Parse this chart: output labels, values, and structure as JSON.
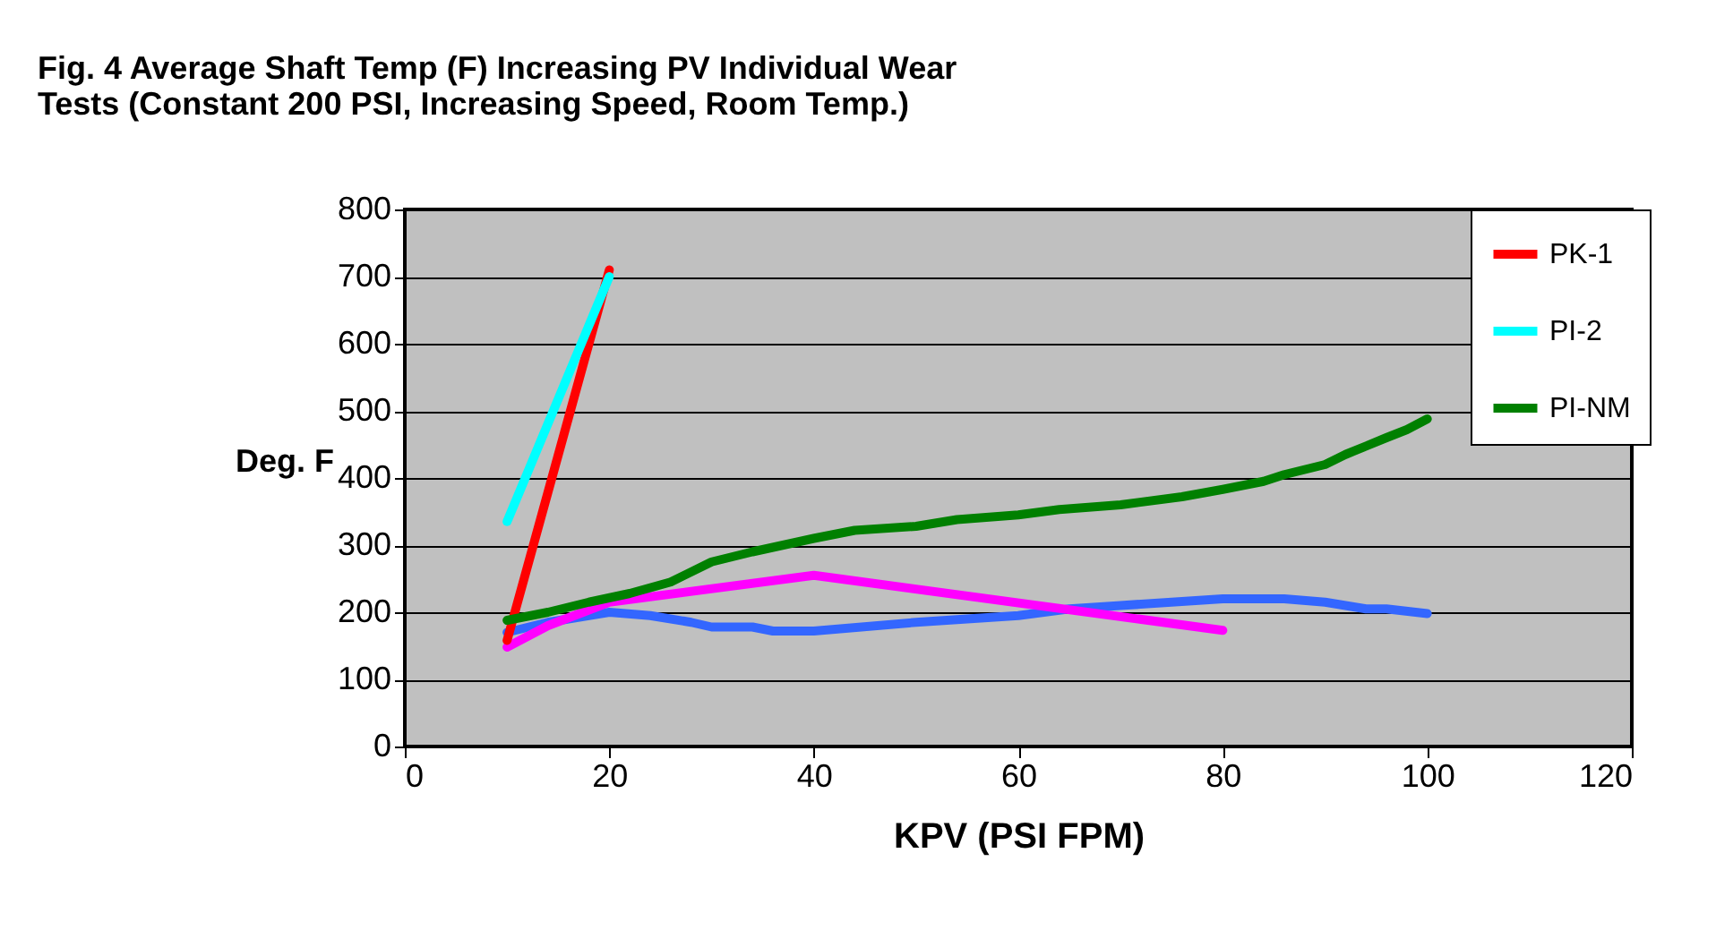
{
  "chart_data": {
    "type": "line",
    "title": "Fig. 4  Average Shaft Temp (F) Increasing PV Individual Wear Tests (Constant 200 PSI, Increasing Speed,  Room Temp.)",
    "xlabel": "KPV (PSI FPM)",
    "ylabel": "Deg. F",
    "xlim": [
      0,
      120
    ],
    "xticks": [
      0,
      20,
      40,
      60,
      80,
      100,
      120
    ],
    "ylim": [
      0,
      800
    ],
    "yticks": [
      0,
      100,
      200,
      300,
      400,
      500,
      600,
      700,
      800
    ],
    "grid": "y",
    "legend": "right",
    "marker": "none",
    "line_style": "solid",
    "series": [
      {
        "color": "#3366ff",
        "x": [
          10,
          14,
          20,
          24,
          28,
          30,
          34,
          36,
          40,
          50,
          60,
          65,
          70,
          80,
          86,
          90,
          94,
          96,
          100
        ],
        "values": [
          170,
          185,
          200,
          195,
          185,
          178,
          178,
          172,
          172,
          185,
          195,
          205,
          210,
          220,
          220,
          215,
          205,
          205,
          198
        ]
      },
      {
        "color": "#ff00ff",
        "x": [
          10,
          14,
          20,
          40,
          80
        ],
        "values": [
          148,
          180,
          215,
          255,
          173
        ]
      },
      {
        "name": "PK-1",
        "color": "#ff0000",
        "x": [
          10,
          20
        ],
        "values": [
          158,
          710
        ]
      },
      {
        "name": "PI-2",
        "color": "#00ffff",
        "x": [
          10,
          20
        ],
        "values": [
          335,
          700
        ]
      },
      {
        "name": "PI-NM",
        "color": "#008000",
        "x": [
          10,
          14,
          18,
          22,
          26,
          30,
          34,
          40,
          44,
          50,
          54,
          60,
          64,
          70,
          76,
          80,
          84,
          86,
          90,
          92,
          96,
          98,
          100
        ],
        "values": [
          188,
          200,
          215,
          228,
          245,
          275,
          290,
          310,
          322,
          328,
          338,
          345,
          353,
          360,
          372,
          383,
          395,
          405,
          420,
          435,
          460,
          472,
          488
        ]
      }
    ]
  }
}
